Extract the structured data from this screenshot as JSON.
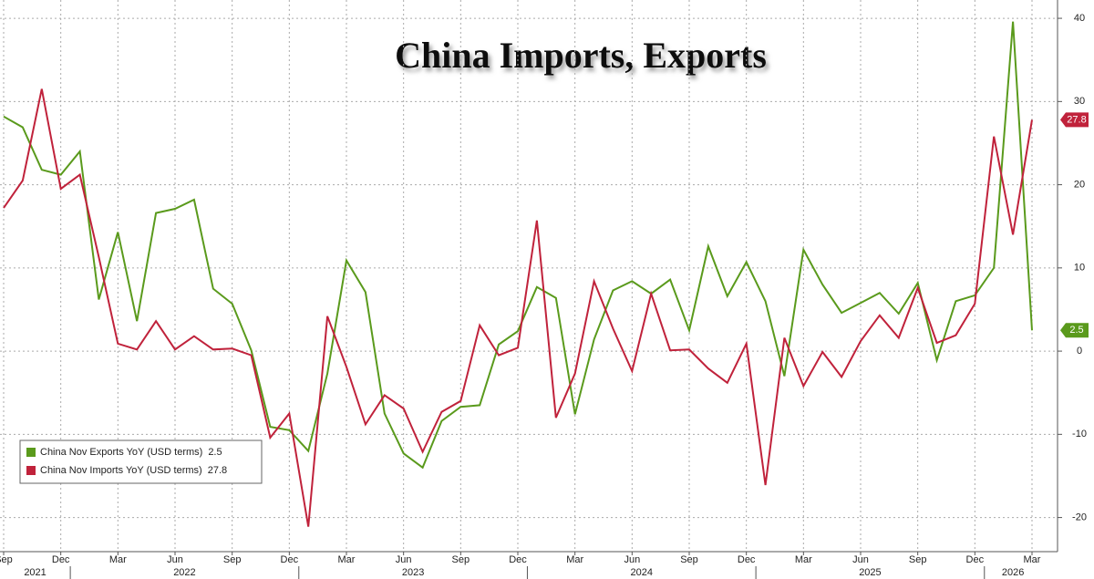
{
  "chart_data": {
    "type": "line",
    "title": "China Imports, Exports",
    "categories": [
      "Sep",
      null,
      null,
      "Dec",
      null,
      null,
      "Mar",
      null,
      null,
      "Jun",
      null,
      null,
      "Sep",
      null,
      null,
      "Dec",
      null,
      null,
      "Mar",
      null,
      null,
      "Jun",
      null,
      null,
      "Sep",
      null,
      null,
      "Dec",
      null,
      null,
      "Mar",
      null,
      null,
      "Jun",
      null,
      null,
      "Sep",
      null,
      null,
      "Dec",
      null,
      null,
      "Mar",
      null,
      null,
      "Jun",
      null,
      null,
      "Sep",
      null,
      null,
      "Dec",
      null,
      null,
      "Mar"
    ],
    "year_groups": [
      {
        "label": "2021",
        "count": 4
      },
      {
        "label": "2022",
        "count": 12
      },
      {
        "label": "2023",
        "count": 12
      },
      {
        "label": "2024",
        "count": 12
      },
      {
        "label": "2025",
        "count": 12
      },
      {
        "label": "2026",
        "count": 3
      }
    ],
    "series": [
      {
        "name": "China Nov Exports YoY (USD terms)",
        "color": "#5a9a1c",
        "values": [
          28.2,
          26.9,
          21.8,
          21.2,
          24.0,
          6.2,
          14.3,
          3.6,
          16.6,
          17.1,
          18.2,
          7.5,
          5.7,
          0.1,
          -9.1,
          -9.5,
          -12.0,
          -2.7,
          10.9,
          7.1,
          -7.5,
          -12.3,
          -14.0,
          -8.4,
          -6.7,
          -6.5,
          0.8,
          2.4,
          7.7,
          6.4,
          -7.6,
          1.4,
          7.3,
          8.4,
          6.9,
          8.6,
          2.5,
          12.6,
          6.6,
          10.7,
          6.0,
          -3.0,
          12.2,
          8.0,
          4.6,
          5.8,
          7.0,
          4.5,
          8.2,
          -1.1,
          6.0,
          6.7,
          10.0,
          39.6,
          2.5
        ]
      },
      {
        "name": "China Nov Imports YoY (USD terms)",
        "color": "#c0223b",
        "values": [
          17.2,
          20.5,
          31.5,
          19.5,
          21.2,
          11.3,
          0.9,
          0.2,
          3.6,
          0.2,
          1.8,
          0.2,
          0.3,
          -0.5,
          -10.4,
          -7.5,
          -21.1,
          4.2,
          -1.9,
          -8.8,
          -5.3,
          -6.9,
          -12.1,
          -7.3,
          -6.0,
          3.1,
          -0.5,
          0.4,
          15.7,
          -8.0,
          -2.7,
          8.4,
          2.7,
          -2.4,
          6.9,
          0.1,
          0.2,
          -2.1,
          -3.8,
          0.9,
          -16.1,
          1.6,
          -4.2,
          -0.1,
          -3.1,
          1.2,
          4.3,
          1.6,
          7.6,
          1.0,
          1.9,
          5.7,
          25.8,
          14.0,
          27.8
        ]
      }
    ],
    "ylim": [
      -24.1,
      42.2
    ],
    "yticks": [
      40,
      30,
      20,
      10,
      0,
      -10,
      -20
    ],
    "grid": true,
    "legend": "bottom-left"
  }
}
